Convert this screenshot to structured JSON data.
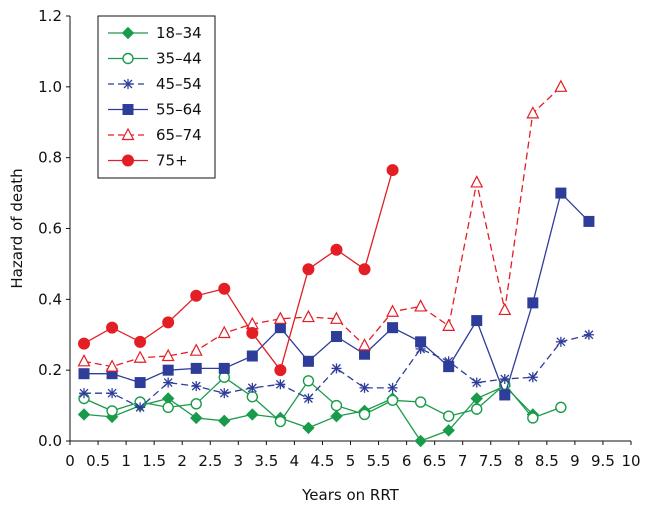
{
  "chart_data": {
    "type": "line",
    "xlabel": "Years on RRT",
    "ylabel": "Hazard of death",
    "xlim": [
      0,
      10
    ],
    "ylim": [
      0,
      1.2
    ],
    "x_ticks": [
      "0",
      "0.5",
      "1",
      "1.5",
      "2",
      "2.5",
      "3",
      "3.5",
      "4",
      "4.5",
      "5",
      "5.5",
      "6",
      "6.5",
      "7",
      "7.5",
      "8",
      "8.5",
      "9",
      "9.5",
      "10"
    ],
    "y_ticks": [
      "0.0",
      "0.2",
      "0.4",
      "0.6",
      "0.8",
      "1.0",
      "1.2"
    ],
    "grid": false,
    "legend_position": "top-left",
    "series": [
      {
        "name": "18–34",
        "color": "#1a9b4b",
        "dash": "solid",
        "marker": "diamond",
        "x": [
          0.25,
          0.75,
          1.25,
          1.75,
          2.25,
          2.75,
          3.25,
          3.75,
          4.25,
          4.75,
          5.25,
          5.75,
          6.25,
          6.75,
          7.25,
          7.75,
          8.25
        ],
        "y": [
          0.075,
          0.068,
          0.1,
          0.12,
          0.065,
          0.057,
          0.075,
          0.065,
          0.037,
          0.07,
          0.085,
          0.12,
          0.0,
          0.03,
          0.12,
          0.155,
          0.075
        ]
      },
      {
        "name": "35–44",
        "color": "#1a9b4b",
        "dash": "solid",
        "marker": "circle-open",
        "x": [
          0.25,
          0.75,
          1.25,
          1.75,
          2.25,
          2.75,
          3.25,
          3.75,
          4.25,
          4.75,
          5.25,
          5.75,
          6.25,
          6.75,
          7.25,
          7.75,
          8.25,
          8.75
        ],
        "y": [
          0.12,
          0.085,
          0.11,
          0.095,
          0.105,
          0.18,
          0.125,
          0.055,
          0.17,
          0.1,
          0.075,
          0.115,
          0.11,
          0.07,
          0.09,
          0.16,
          0.065,
          0.095
        ]
      },
      {
        "name": "45–54",
        "color": "#2e3d99",
        "dash": "dashed",
        "marker": "asterisk",
        "x": [
          0.25,
          0.75,
          1.25,
          1.75,
          2.25,
          2.75,
          3.25,
          3.75,
          4.25,
          4.75,
          5.25,
          5.75,
          6.25,
          6.75,
          7.25,
          7.75,
          8.25,
          8.75,
          9.25
        ],
        "y": [
          0.135,
          0.135,
          0.095,
          0.165,
          0.155,
          0.135,
          0.15,
          0.16,
          0.12,
          0.205,
          0.15,
          0.15,
          0.26,
          0.225,
          0.165,
          0.175,
          0.18,
          0.28,
          0.3
        ]
      },
      {
        "name": "55–64",
        "color": "#2e3d99",
        "dash": "solid",
        "marker": "square",
        "x": [
          0.25,
          0.75,
          1.25,
          1.75,
          2.25,
          2.75,
          3.25,
          3.75,
          4.25,
          4.75,
          5.25,
          5.75,
          6.25,
          6.75,
          7.25,
          7.75,
          8.25,
          8.75,
          9.25
        ],
        "y": [
          0.19,
          0.19,
          0.165,
          0.2,
          0.205,
          0.205,
          0.24,
          0.32,
          0.225,
          0.295,
          0.245,
          0.32,
          0.28,
          0.21,
          0.34,
          0.13,
          0.39,
          0.7,
          0.62
        ]
      },
      {
        "name": "65–74",
        "color": "#e31e24",
        "dash": "dashed",
        "marker": "triangle-open",
        "x": [
          0.25,
          0.75,
          1.25,
          1.75,
          2.25,
          2.75,
          3.25,
          3.75,
          4.25,
          4.75,
          5.25,
          5.75,
          6.25,
          6.75,
          7.25,
          7.75,
          8.25,
          8.75
        ],
        "y": [
          0.225,
          0.21,
          0.235,
          0.24,
          0.255,
          0.305,
          0.33,
          0.345,
          0.35,
          0.345,
          0.27,
          0.365,
          0.38,
          0.325,
          0.73,
          0.37,
          0.925,
          1.0
        ]
      },
      {
        "name": "75+",
        "color": "#e31e24",
        "dash": "solid",
        "marker": "circle",
        "x": [
          0.25,
          0.75,
          1.25,
          1.75,
          2.25,
          2.75,
          3.25,
          3.75,
          4.25,
          4.75,
          5.25,
          5.75
        ],
        "y": [
          0.275,
          0.32,
          0.28,
          0.335,
          0.41,
          0.43,
          0.305,
          0.2,
          0.485,
          0.54,
          0.485,
          0.765
        ]
      }
    ]
  }
}
